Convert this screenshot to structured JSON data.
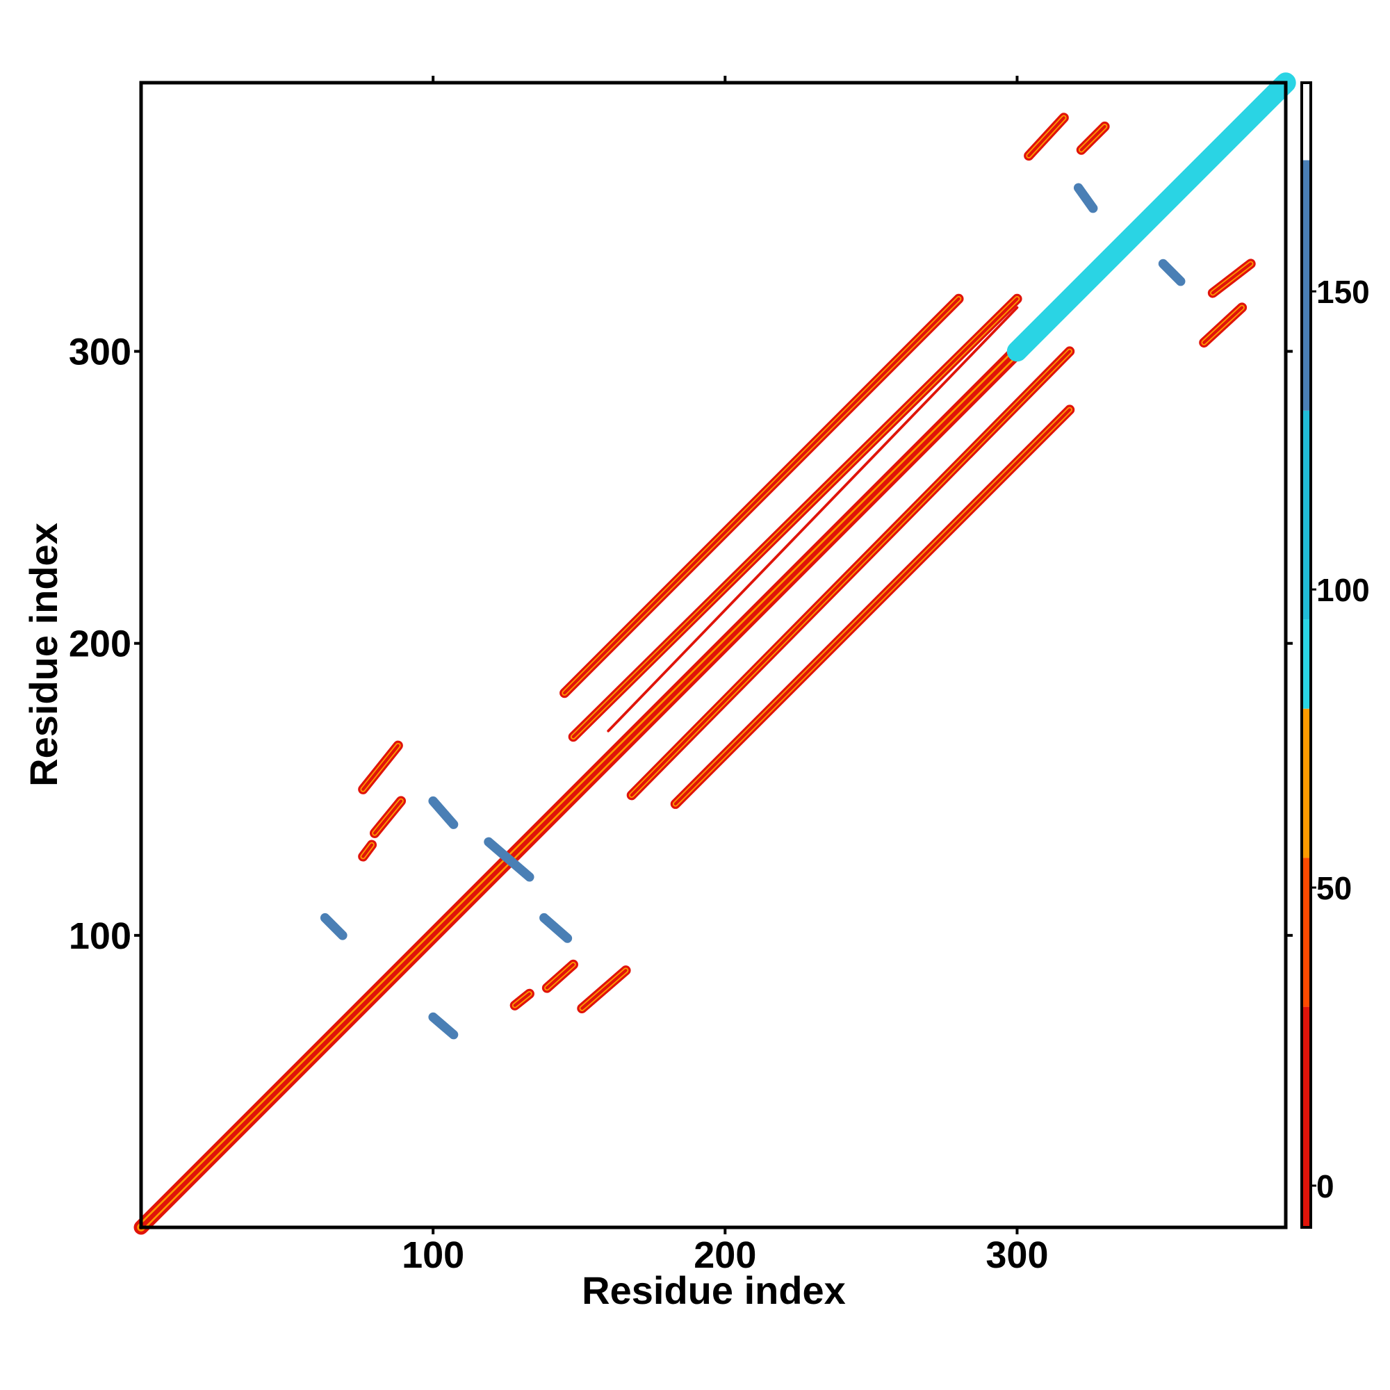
{
  "chart_data": {
    "type": "heatmap",
    "title": "",
    "xlabel": "Residue index",
    "ylabel": "Residue index",
    "xlim": [
      0,
      392
    ],
    "ylim": [
      0,
      392
    ],
    "x_ticks": [
      {
        "value": 100,
        "label": "100"
      },
      {
        "value": 200,
        "label": "200"
      },
      {
        "value": 300,
        "label": "300"
      }
    ],
    "y_ticks": [
      {
        "value": 100,
        "label": "100"
      },
      {
        "value": 200,
        "label": "200"
      },
      {
        "value": 300,
        "label": "300"
      }
    ],
    "colorbar": {
      "range": [
        -7,
        185
      ],
      "ticks": [
        {
          "value": 0,
          "label": "0"
        },
        {
          "value": 50,
          "label": "50"
        },
        {
          "value": 100,
          "label": "100"
        },
        {
          "value": 150,
          "label": "150"
        }
      ],
      "bands": [
        {
          "from": -7,
          "to": 30,
          "color": "#e0140a"
        },
        {
          "from": 30,
          "to": 55,
          "color": "#ff4a00"
        },
        {
          "from": 55,
          "to": 80,
          "color": "#ff9a00"
        },
        {
          "from": 80,
          "to": 95,
          "color": "#2ad4e4"
        },
        {
          "from": 95,
          "to": 130,
          "color": "#21bcd7"
        },
        {
          "from": 130,
          "to": 172,
          "color": "#4a7fb5"
        },
        {
          "from": 172,
          "to": 185,
          "color": "#ffffff"
        }
      ]
    },
    "features": [
      {
        "kind": "diagonal",
        "from": [
          0,
          0
        ],
        "to": [
          392,
          392
        ],
        "value": 0
      },
      {
        "kind": "helix-blob",
        "from": [
          300,
          300
        ],
        "to": [
          392,
          392
        ],
        "value": 85
      },
      {
        "kind": "strand",
        "from": [
          148,
          168
        ],
        "to": [
          300,
          318
        ],
        "value": 5
      },
      {
        "kind": "strand",
        "from": [
          168,
          148
        ],
        "to": [
          318,
          300
        ],
        "value": 5
      },
      {
        "kind": "strand",
        "from": [
          145,
          183
        ],
        "to": [
          280,
          318
        ],
        "value": 10
      },
      {
        "kind": "strand",
        "from": [
          183,
          145
        ],
        "to": [
          318,
          280
        ],
        "value": 10
      },
      {
        "kind": "faint-line",
        "from": [
          160,
          170
        ],
        "to": [
          300,
          315
        ],
        "value": 20
      },
      {
        "kind": "strand",
        "from": [
          76,
          150
        ],
        "to": [
          88,
          165
        ],
        "value": 5
      },
      {
        "kind": "strand",
        "from": [
          80,
          135
        ],
        "to": [
          89,
          146
        ],
        "value": 10
      },
      {
        "kind": "strand",
        "from": [
          76,
          127
        ],
        "to": [
          79,
          131
        ],
        "value": 10
      },
      {
        "kind": "strand",
        "from": [
          128,
          76
        ],
        "to": [
          133,
          80
        ],
        "value": 10
      },
      {
        "kind": "strand",
        "from": [
          139,
          82
        ],
        "to": [
          148,
          90
        ],
        "value": 10
      },
      {
        "kind": "strand",
        "from": [
          151,
          75
        ],
        "to": [
          166,
          88
        ],
        "value": 10
      },
      {
        "kind": "anti",
        "from": [
          119,
          132
        ],
        "to": [
          133,
          120
        ],
        "value": 160
      },
      {
        "kind": "anti",
        "from": [
          100,
          146
        ],
        "to": [
          107,
          138
        ],
        "value": 160
      },
      {
        "kind": "anti",
        "from": [
          63,
          106
        ],
        "to": [
          69,
          100
        ],
        "value": 160
      },
      {
        "kind": "anti",
        "from": [
          138,
          106
        ],
        "to": [
          146,
          99
        ],
        "value": 160
      },
      {
        "kind": "anti",
        "from": [
          100,
          72
        ],
        "to": [
          107,
          66
        ],
        "value": 160
      },
      {
        "kind": "strand",
        "from": [
          304,
          367
        ],
        "to": [
          316,
          380
        ],
        "value": 10
      },
      {
        "kind": "strand",
        "from": [
          322,
          369
        ],
        "to": [
          330,
          377
        ],
        "value": 10
      },
      {
        "kind": "strand",
        "from": [
          367,
          320
        ],
        "to": [
          380,
          330
        ],
        "value": 10
      },
      {
        "kind": "strand",
        "from": [
          364,
          303
        ],
        "to": [
          377,
          315
        ],
        "value": 10
      },
      {
        "kind": "anti",
        "from": [
          321,
          356
        ],
        "to": [
          326,
          349
        ],
        "value": 160
      },
      {
        "kind": "anti",
        "from": [
          350,
          330
        ],
        "to": [
          356,
          324
        ],
        "value": 160
      }
    ]
  }
}
